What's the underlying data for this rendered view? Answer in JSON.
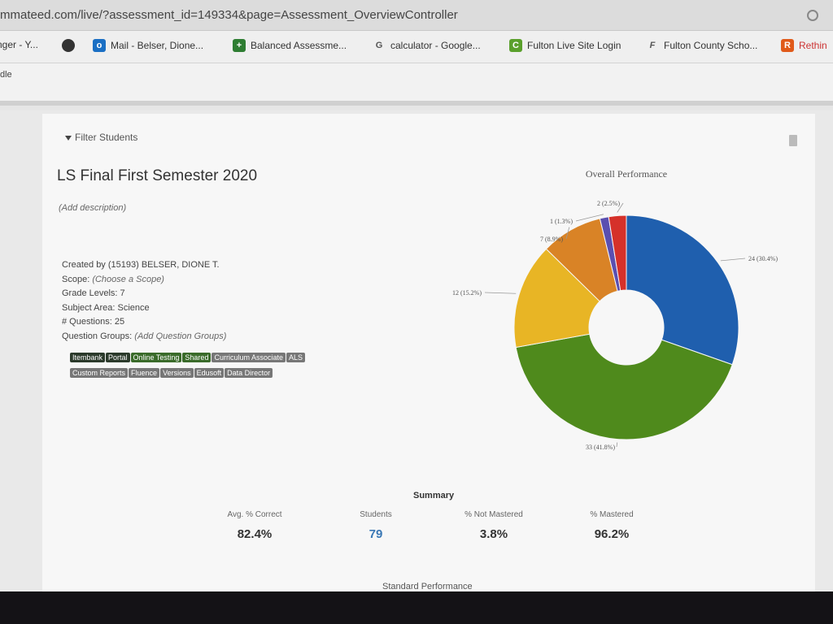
{
  "browser": {
    "url": "mmateed.com/live/?assessment_id=149334&page=Assessment_OverviewController",
    "bookmarks": [
      {
        "label": "nger - Y...",
        "icon": "yahoo-icon"
      },
      {
        "label": "",
        "icon": "globe-icon"
      },
      {
        "label": "Mail - Belser, Dione...",
        "icon": "mail-icon"
      },
      {
        "label": "Balanced Assessme...",
        "icon": "plus-icon"
      },
      {
        "label": "calculator - Google...",
        "icon": "google-icon"
      },
      {
        "label": "Fulton Live Site Login",
        "icon": "c-icon"
      },
      {
        "label": "Fulton County Scho...",
        "icon": "f-icon"
      },
      {
        "label": "Rethin",
        "icon": "r-icon"
      }
    ],
    "subbar_text": "dle"
  },
  "assessment": {
    "filter_label": "Filter Students",
    "title": "LS Final First Semester 2020",
    "description": "(Add description)",
    "created_by_label": "Created by",
    "created_by_value": "(15193) BELSER, DIONE T.",
    "scope_label": "Scope:",
    "scope_value": "(Choose a Scope)",
    "grade_label": "Grade Levels:",
    "grade_value": "7",
    "subject_label": "Subject Area:",
    "subject_value": "Science",
    "questions_label": "# Questions:",
    "questions_value": "25",
    "groups_label": "Question Groups:",
    "groups_value": "(Add Question Groups)"
  },
  "tags": [
    {
      "label": "Itembank",
      "style": "dark"
    },
    {
      "label": "Portal",
      "style": "dark"
    },
    {
      "label": "Online Testing",
      "style": "green"
    },
    {
      "label": "Shared",
      "style": "green"
    },
    {
      "label": "Curriculum Associate",
      "style": "grey"
    },
    {
      "label": "ALS",
      "style": "grey"
    },
    {
      "label": "Custom Reports",
      "style": "grey"
    },
    {
      "label": "Fluence",
      "style": "grey"
    },
    {
      "label": "Versions",
      "style": "grey"
    },
    {
      "label": "Edusoft",
      "style": "grey"
    },
    {
      "label": "Data Director",
      "style": "grey"
    }
  ],
  "chart_data": {
    "type": "pie",
    "donut": true,
    "title": "Overall Performance",
    "slices": [
      {
        "label": "24 (30.4%)",
        "value": 24,
        "color": "#1f5fae"
      },
      {
        "label": "33 (41.8%)",
        "value": 33,
        "color": "#4f8a1c"
      },
      {
        "label": "12 (15.2%)",
        "value": 12,
        "color": "#e8b525"
      },
      {
        "label": "7 (8.9%)",
        "value": 7,
        "color": "#d98326"
      },
      {
        "label": "1 (1.3%)",
        "value": 1,
        "color": "#5a4fb0"
      },
      {
        "label": "2 (2.5%)",
        "value": 2,
        "color": "#d5312a"
      }
    ]
  },
  "summary": {
    "title": "Summary",
    "avg_label": "Avg. % Correct",
    "avg_value": "82.4%",
    "students_label": "Students",
    "students_value": "79",
    "not_mastered_label": "% Not Mastered",
    "not_mastered_value": "3.8%",
    "mastered_label": "% Mastered",
    "mastered_value": "96.2%",
    "next_section": "Standard Performance"
  }
}
